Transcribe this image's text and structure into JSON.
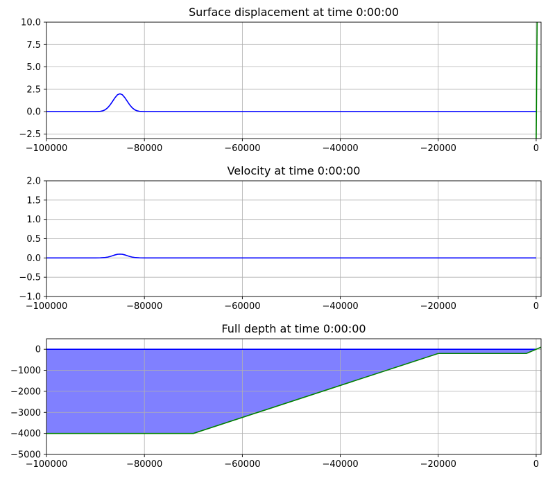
{
  "chart_data": [
    {
      "type": "line",
      "title": "Surface displacement at time 0:00:00",
      "xlabel": "",
      "ylabel": "",
      "xlim": [
        -100000,
        1000
      ],
      "ylim": [
        -3,
        10
      ],
      "grid": true,
      "x_ticks": [
        -100000,
        -80000,
        -60000,
        -40000,
        -20000,
        0
      ],
      "x_tick_labels": [
        "−100000",
        "−80000",
        "−60000",
        "−40000",
        "−20000",
        "0"
      ],
      "y_ticks": [
        -2.5,
        0.0,
        2.5,
        5.0,
        7.5,
        10.0
      ],
      "y_tick_labels": [
        "−2.5",
        "0.0",
        "2.5",
        "5.0",
        "7.5",
        "10.0"
      ],
      "series": [
        {
          "color": "#0000ff",
          "x": [
            -100000,
            -91000,
            -90000,
            -89000,
            -88500,
            -88000,
            -87500,
            -87000,
            -86500,
            -86000,
            -85500,
            -85000,
            -84500,
            -84000,
            -83500,
            -83000,
            -82500,
            -82000,
            -81500,
            -81000,
            -80000,
            0
          ],
          "y": [
            0,
            0,
            0.003,
            0.04,
            0.1,
            0.22,
            0.44,
            0.76,
            1.16,
            1.57,
            1.89,
            2.0,
            1.89,
            1.57,
            1.16,
            0.76,
            0.44,
            0.22,
            0.1,
            0.04,
            0,
            0
          ]
        },
        {
          "color": "#008000",
          "x": [
            0,
            200
          ],
          "y": [
            -3,
            10
          ]
        }
      ]
    },
    {
      "type": "line",
      "title": "Velocity at time 0:00:00",
      "xlabel": "",
      "ylabel": "",
      "xlim": [
        -100000,
        1000
      ],
      "ylim": [
        -1,
        2
      ],
      "grid": true,
      "x_ticks": [
        -100000,
        -80000,
        -60000,
        -40000,
        -20000,
        0
      ],
      "x_tick_labels": [
        "−100000",
        "−80000",
        "−60000",
        "−40000",
        "−20000",
        "0"
      ],
      "y_ticks": [
        -1.0,
        -0.5,
        0.0,
        0.5,
        1.0,
        1.5,
        2.0
      ],
      "y_tick_labels": [
        "−1.0",
        "−0.5",
        "0.0",
        "0.5",
        "1.0",
        "1.5",
        "2.0"
      ],
      "series": [
        {
          "color": "#0000ff",
          "x": [
            -100000,
            -90000,
            -89000,
            -88000,
            -87500,
            -87000,
            -86500,
            -86000,
            -85500,
            -85000,
            -84500,
            -84000,
            -83500,
            -83000,
            -82500,
            -82000,
            -81000,
            -80000,
            0
          ],
          "y": [
            0,
            0,
            0.002,
            0.011,
            0.022,
            0.038,
            0.058,
            0.079,
            0.095,
            0.1,
            0.095,
            0.079,
            0.058,
            0.038,
            0.022,
            0.011,
            0.002,
            0,
            0
          ]
        }
      ]
    },
    {
      "type": "area",
      "title": "Full depth at time 0:00:00",
      "xlabel": "",
      "ylabel": "",
      "xlim": [
        -100000,
        1000
      ],
      "ylim": [
        -5000,
        500
      ],
      "grid": true,
      "x_ticks": [
        -100000,
        -80000,
        -60000,
        -40000,
        -20000,
        0
      ],
      "x_tick_labels": [
        "−100000",
        "−80000",
        "−60000",
        "−40000",
        "−20000",
        "0"
      ],
      "y_ticks": [
        -5000,
        -4000,
        -3000,
        -2000,
        -1000,
        0
      ],
      "y_tick_labels": [
        "−5000",
        "−4000",
        "−3000",
        "−2000",
        "−1000",
        "0"
      ],
      "fill_color": "#8080ff",
      "series": [
        {
          "role": "surface",
          "color": "#0000ff",
          "x": [
            -100000,
            0
          ],
          "y": [
            0,
            0
          ]
        },
        {
          "role": "bottom",
          "color": "#008000",
          "x": [
            -100000,
            -70000,
            -20000,
            -2000,
            1000
          ],
          "y": [
            -4000,
            -4000,
            -200,
            -200,
            100
          ]
        }
      ]
    }
  ]
}
